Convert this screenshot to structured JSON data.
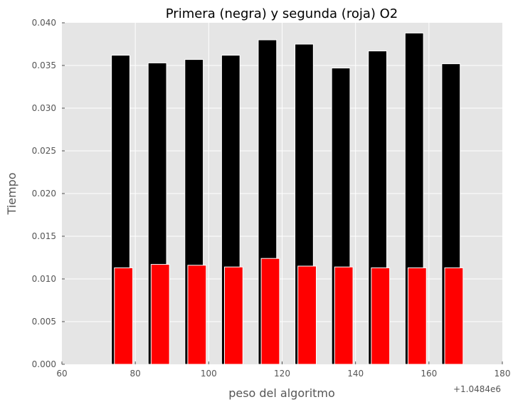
{
  "chart_data": {
    "type": "bar",
    "title": "Primera (negra) y segunda (roja) O2",
    "xlabel": "peso del algoritmo",
    "ylabel": "Tiempo",
    "x_offset_label": "+1.0484e6",
    "xlim": [
      60,
      180
    ],
    "ylim": [
      0,
      0.04
    ],
    "x_ticks": [
      "60",
      "80",
      "100",
      "120",
      "140",
      "160",
      "180"
    ],
    "y_ticks": [
      "0.000",
      "0.005",
      "0.010",
      "0.015",
      "0.020",
      "0.025",
      "0.030",
      "0.035",
      "0.040"
    ],
    "grid": true,
    "series": [
      {
        "name": "Primera",
        "color": "#000000",
        "x_start": [
          73.5,
          83.5,
          93.5,
          103.5,
          113.5,
          123.5,
          133.5,
          143.5,
          153.5,
          163.5
        ],
        "width": 5,
        "values": [
          0.0362,
          0.0353,
          0.0357,
          0.0362,
          0.038,
          0.0375,
          0.0347,
          0.0367,
          0.0388,
          0.0352
        ]
      },
      {
        "name": "Segunda",
        "color": "#ff0000",
        "x_start": [
          74.3,
          84.3,
          94.3,
          104.3,
          114.3,
          124.3,
          134.3,
          144.3,
          154.3,
          164.3
        ],
        "width": 5,
        "values": [
          0.0113,
          0.0117,
          0.0116,
          0.0114,
          0.0124,
          0.0115,
          0.0114,
          0.0113,
          0.0113,
          0.0113
        ]
      }
    ]
  }
}
